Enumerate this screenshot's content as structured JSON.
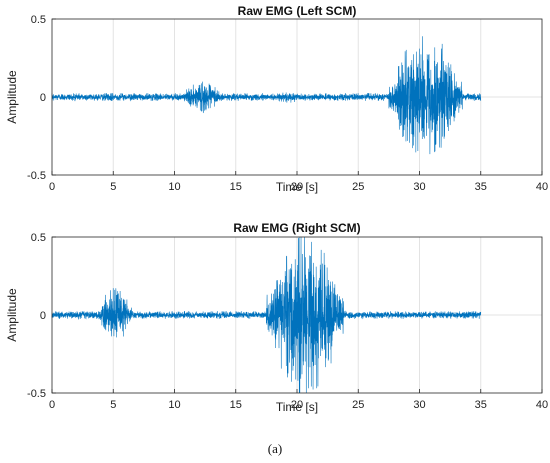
{
  "caption": "(a)",
  "colors": {
    "signal": "#0072BD"
  },
  "chart_data": [
    {
      "type": "line",
      "title": "Raw EMG (Left SCM)",
      "xlabel": "Time [s]",
      "ylabel": "Amplitude",
      "xlim": [
        0,
        40
      ],
      "ylim": [
        -0.5,
        0.5
      ],
      "xticks": [
        "0",
        "5",
        "10",
        "15",
        "20",
        "25",
        "30",
        "35",
        "40"
      ],
      "yticks": [
        "0.5",
        "0",
        "-0.5"
      ],
      "grid": true,
      "series": [
        {
          "signal_end_s": 35,
          "baseline_amplitude": 0.025,
          "bursts": [
            {
              "start": 10.5,
              "end": 14.0,
              "amplitude": 0.1
            },
            {
              "start": 18.0,
              "end": 20.5,
              "amplitude": 0.04
            },
            {
              "start": 27.5,
              "end": 33.5,
              "amplitude": 0.42
            }
          ]
        }
      ]
    },
    {
      "type": "line",
      "title": "Raw EMG (Right SCM)",
      "xlabel": "Time [s]",
      "ylabel": "Amplitude",
      "xlim": [
        0,
        40
      ],
      "ylim": [
        -0.5,
        0.5
      ],
      "xticks": [
        "0",
        "5",
        "10",
        "15",
        "20",
        "25",
        "30",
        "35",
        "40"
      ],
      "yticks": [
        "0.5",
        "0",
        "-0.5"
      ],
      "grid": true,
      "series": [
        {
          "signal_end_s": 35,
          "baseline_amplitude": 0.025,
          "bursts": [
            {
              "start": 3.8,
              "end": 6.5,
              "amplitude": 0.2
            },
            {
              "start": 17.5,
              "end": 23.8,
              "amplitude": 0.55
            }
          ]
        }
      ]
    }
  ]
}
